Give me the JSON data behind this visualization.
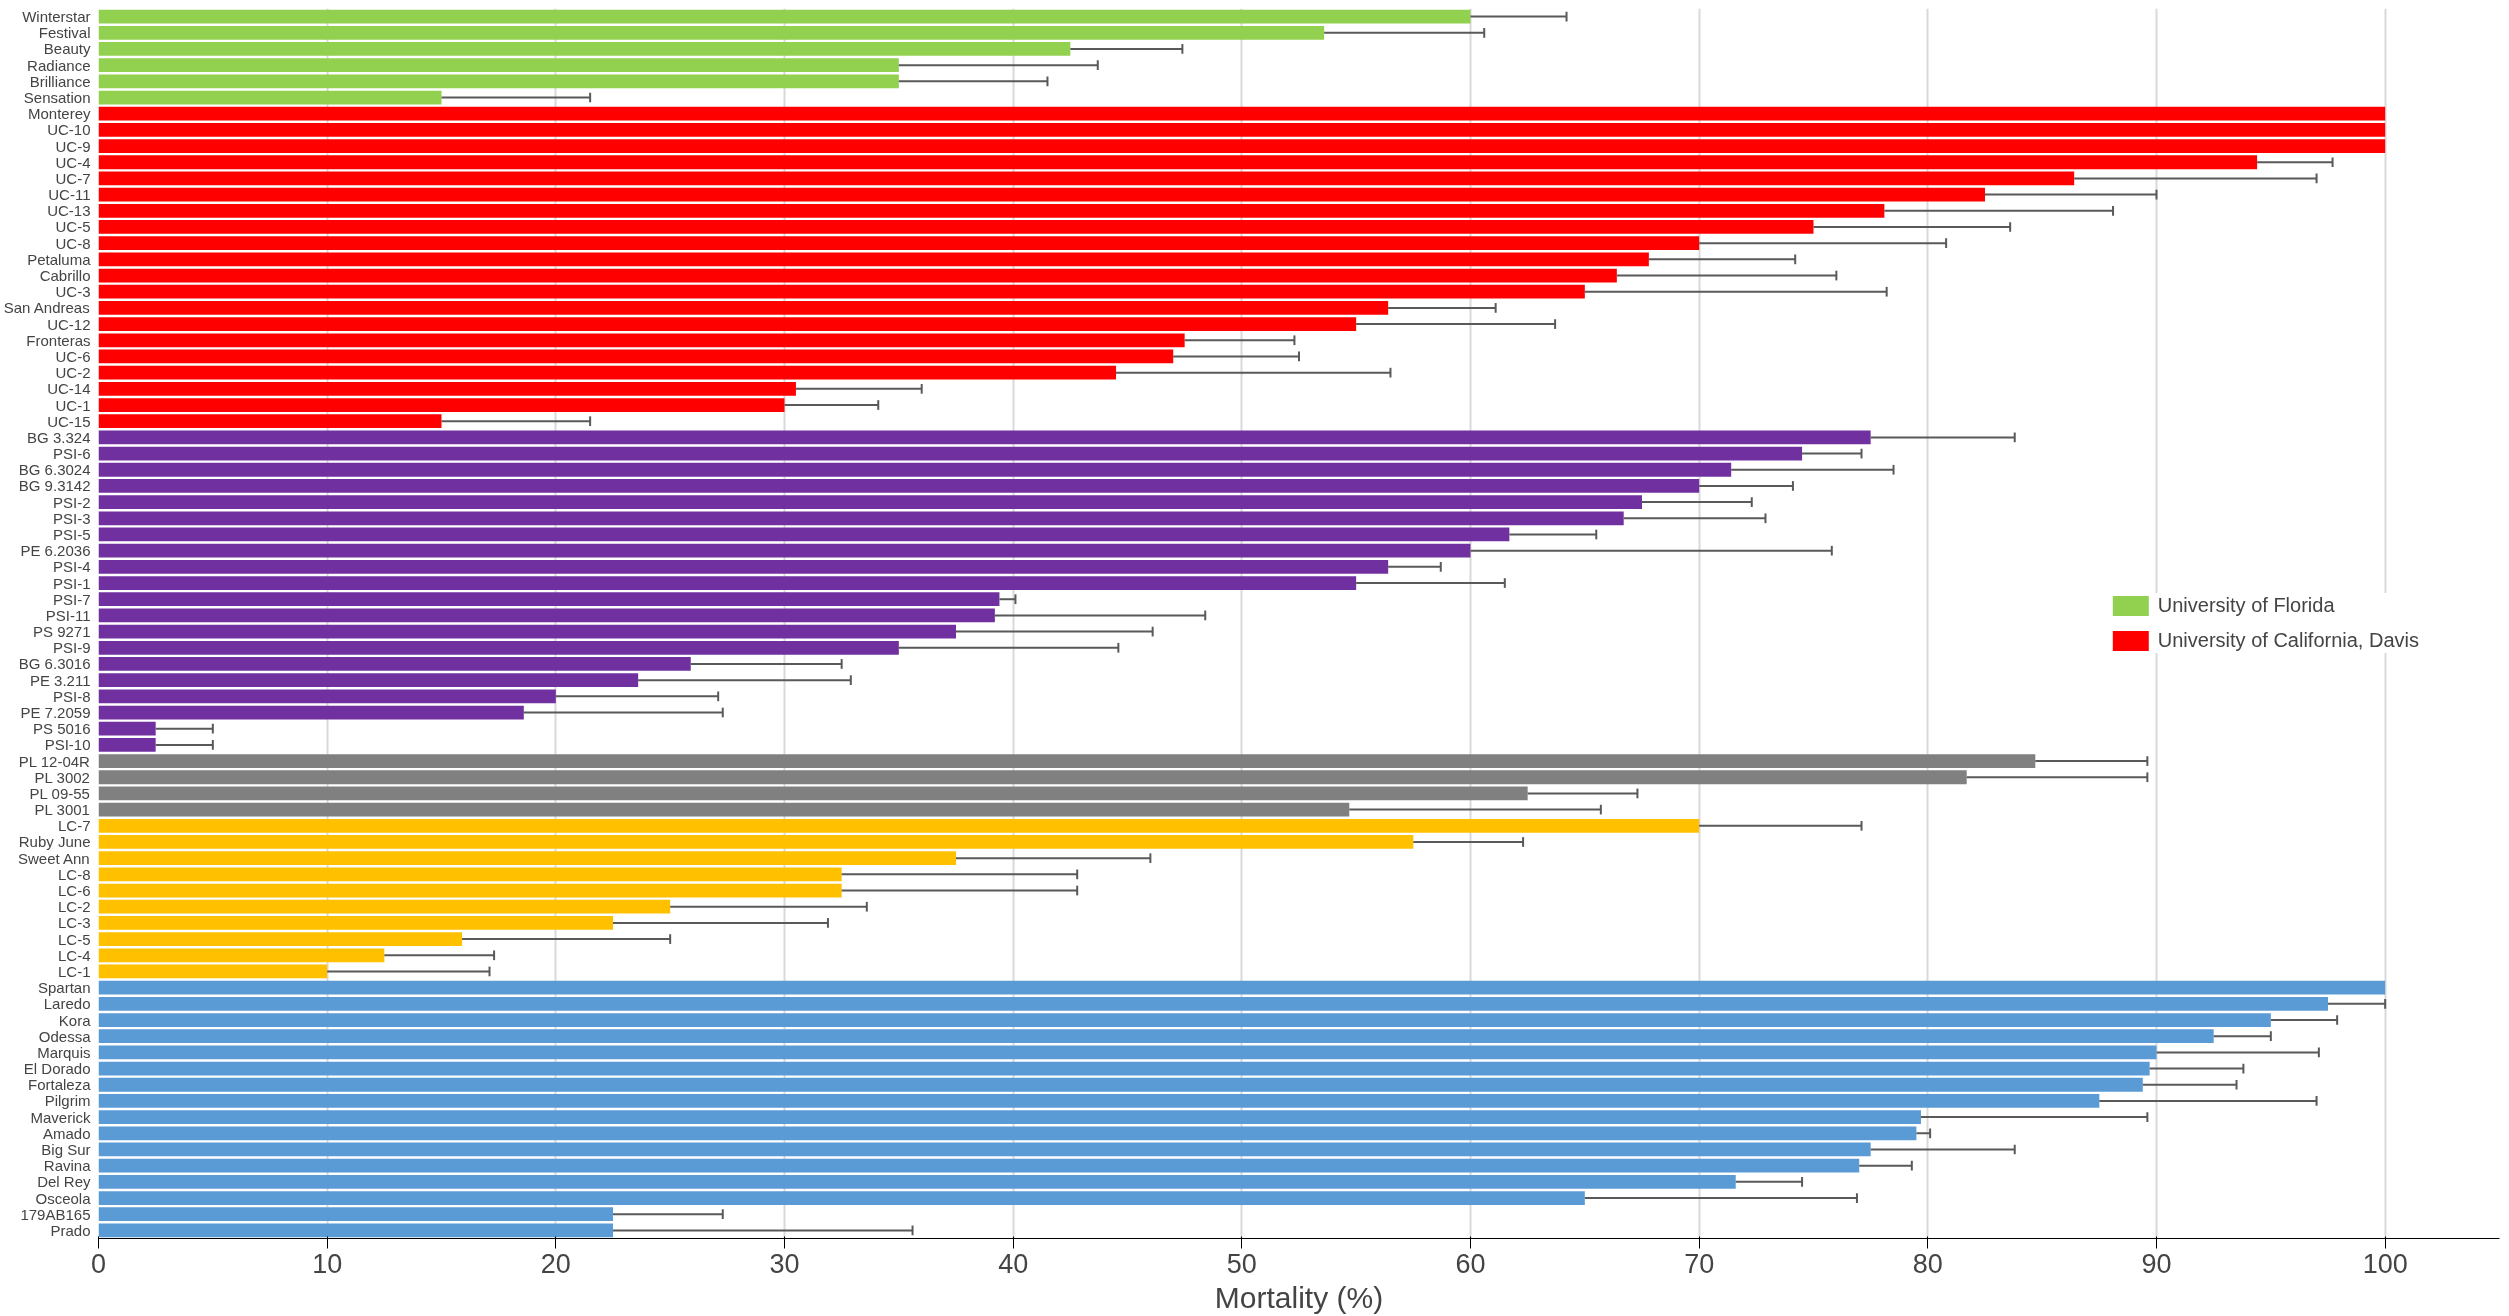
{
  "chart_data": {
    "type": "bar",
    "orientation": "horizontal",
    "xlabel": "Mortality (%)",
    "categories": [
      "Winterstar",
      "Festival",
      "Beauty",
      "Radiance",
      "Brilliance",
      "Sensation",
      "Monterey",
      "UC-10",
      "UC-9",
      "UC-4",
      "UC-7",
      "UC-11",
      "UC-13",
      "UC-5",
      "UC-8",
      "Petaluma",
      "Cabrillo",
      "UC-3",
      "San Andreas",
      "UC-12",
      "Fronteras",
      "UC-6",
      "UC-2",
      "UC-14",
      "UC-1",
      "UC-15",
      "BG 3.324",
      "PSI-6",
      "BG 6.3024",
      "BG 9.3142",
      "PSI-2",
      "PSI-3",
      "PSI-5",
      "PE 6.2036",
      "PSI-4",
      "PSI-1",
      "PSI-7",
      "PSI-11",
      "PS 9271",
      "PSI-9",
      "BG 6.3016",
      "PE 3.211",
      "PSI-8",
      "PE 7.2059",
      "PS 5016",
      "PSI-10",
      "PL 12-04R",
      "PL 3002",
      "PL 09-55",
      "PL 3001",
      "LC-7",
      "Ruby June",
      "Sweet Ann",
      "LC-8",
      "LC-6",
      "LC-2",
      "LC-3",
      "LC-5",
      "LC-4",
      "LC-1",
      "Spartan",
      "Laredo",
      "Kora",
      "Odessa",
      "Marquis",
      "El Dorado",
      "Fortaleza",
      "Pilgrim",
      "Maverick",
      "Amado",
      "Big Sur",
      "Ravina",
      "Del Rey",
      "Osceola",
      "179AB165",
      "Prado"
    ],
    "series": [
      {
        "name": "University of Florida",
        "color": "#92d050",
        "values": [
          60,
          53.6,
          42.5,
          35,
          35,
          15,
          null,
          null,
          null,
          null,
          null,
          null,
          null,
          null,
          null,
          null,
          null,
          null,
          null,
          null,
          null,
          null,
          null,
          null,
          null,
          null,
          null,
          null,
          null,
          null,
          null,
          null,
          null,
          null,
          null,
          null,
          null,
          null,
          null,
          null,
          null,
          null,
          null,
          null,
          null,
          null,
          null,
          null,
          null,
          null,
          null,
          null,
          null,
          null,
          null,
          null,
          null,
          null,
          null,
          null,
          null,
          null,
          null,
          null,
          null,
          null,
          null,
          null,
          null,
          null,
          null,
          null,
          null,
          null,
          null,
          null
        ],
        "errors": [
          [
            60,
            64.2
          ],
          [
            53.6,
            60.6
          ],
          [
            42.5,
            47.4
          ],
          [
            35,
            43.7
          ],
          [
            35,
            41.5
          ],
          [
            15,
            21.5
          ],
          null,
          null,
          null,
          null,
          null,
          null,
          null,
          null,
          null,
          null,
          null,
          null,
          null,
          null,
          null,
          null,
          null,
          null,
          null,
          null,
          null,
          null,
          null,
          null,
          null,
          null,
          null,
          null,
          null,
          null,
          null,
          null,
          null,
          null,
          null,
          null,
          null,
          null,
          null,
          null,
          null,
          null,
          null,
          null,
          null,
          null,
          null,
          null,
          null,
          null,
          null,
          null,
          null,
          null,
          null,
          null,
          null,
          null,
          null,
          null,
          null,
          null,
          null,
          null,
          null,
          null,
          null,
          null,
          null,
          null
        ]
      },
      {
        "name": "University of California, Davis",
        "color": "#ff0000",
        "values": [
          null,
          null,
          null,
          null,
          null,
          null,
          100,
          100,
          100,
          94.4,
          86.4,
          82.5,
          78.1,
          75,
          70,
          67.8,
          66.4,
          65,
          56.4,
          55,
          47.5,
          47,
          44.5,
          30.5,
          30,
          15,
          null,
          null,
          null,
          null,
          null,
          null,
          null,
          null,
          null,
          null,
          null,
          null,
          null,
          null,
          null,
          null,
          null,
          null,
          null,
          null,
          null,
          null,
          null,
          null,
          null,
          null,
          null,
          null,
          null,
          null,
          null,
          null,
          null,
          null,
          null,
          null,
          null,
          null,
          null,
          null,
          null,
          null,
          null,
          null,
          null,
          null,
          null,
          null,
          null,
          null
        ],
        "errors": [
          null,
          null,
          null,
          null,
          null,
          null,
          null,
          null,
          null,
          [
            94.4,
            97.7
          ],
          [
            86.4,
            97
          ],
          [
            82.5,
            90
          ],
          [
            78.1,
            88.1
          ],
          [
            75,
            83.6
          ],
          [
            70,
            80.8
          ],
          [
            67.8,
            74.2
          ],
          [
            66.4,
            76
          ],
          [
            65,
            78.2
          ],
          [
            56.4,
            61.1
          ],
          [
            55,
            63.7
          ],
          [
            47.5,
            52.3
          ],
          [
            47,
            52.5
          ],
          [
            44.5,
            56.5
          ],
          [
            30.5,
            36
          ],
          [
            30,
            34.1
          ],
          [
            15,
            21.5
          ],
          null,
          null,
          null,
          null,
          null,
          null,
          null,
          null,
          null,
          null,
          null,
          null,
          null,
          null,
          null,
          null,
          null,
          null,
          null,
          null,
          null,
          null,
          null,
          null,
          null,
          null,
          null,
          null,
          null,
          null,
          null,
          null,
          null,
          null,
          null,
          null,
          null,
          null,
          null,
          null,
          null,
          null,
          null,
          null,
          null,
          null,
          null,
          null,
          null,
          null
        ]
      },
      {
        "color": "#7030a0",
        "values": [
          null,
          null,
          null,
          null,
          null,
          null,
          null,
          null,
          null,
          null,
          null,
          null,
          null,
          null,
          null,
          null,
          null,
          null,
          null,
          null,
          null,
          null,
          null,
          null,
          null,
          null,
          77.5,
          74.5,
          71.4,
          70,
          67.5,
          66.7,
          61.7,
          60,
          56.4,
          55,
          39.4,
          39.2,
          37.5,
          35,
          25.9,
          23.6,
          20,
          18.6,
          2.5,
          2.5,
          null,
          null,
          null,
          null,
          null,
          null,
          null,
          null,
          null,
          null,
          null,
          null,
          null,
          null,
          null,
          null,
          null,
          null,
          null,
          null,
          null,
          null,
          null,
          null,
          null,
          null,
          null,
          null,
          null,
          null
        ],
        "errors": [
          null,
          null,
          null,
          null,
          null,
          null,
          null,
          null,
          null,
          null,
          null,
          null,
          null,
          null,
          null,
          null,
          null,
          null,
          null,
          null,
          null,
          null,
          null,
          null,
          null,
          null,
          [
            77.5,
            83.8
          ],
          [
            74.5,
            77.1
          ],
          [
            71.4,
            78.5
          ],
          [
            70,
            74.1
          ],
          [
            67.5,
            72.3
          ],
          [
            66.7,
            72.9
          ],
          [
            61.7,
            65.5
          ],
          [
            60,
            75.8
          ],
          [
            56.4,
            58.7
          ],
          [
            55,
            61.5
          ],
          [
            39.4,
            40.1
          ],
          [
            39.2,
            48.4
          ],
          [
            37.5,
            46.1
          ],
          [
            35,
            44.6
          ],
          [
            25.9,
            32.5
          ],
          [
            23.6,
            32.9
          ],
          [
            20,
            27.1
          ],
          [
            18.6,
            27.3
          ],
          [
            2.5,
            5
          ],
          [
            2.5,
            5
          ],
          null,
          null,
          null,
          null,
          null,
          null,
          null,
          null,
          null,
          null,
          null,
          null,
          null,
          null,
          null,
          null,
          null,
          null,
          null,
          null,
          null,
          null,
          null,
          null,
          null,
          null,
          null,
          null,
          null,
          null
        ]
      },
      {
        "color": "#808080",
        "values": [
          null,
          null,
          null,
          null,
          null,
          null,
          null,
          null,
          null,
          null,
          null,
          null,
          null,
          null,
          null,
          null,
          null,
          null,
          null,
          null,
          null,
          null,
          null,
          null,
          null,
          null,
          null,
          null,
          null,
          null,
          null,
          null,
          null,
          null,
          null,
          null,
          null,
          null,
          null,
          null,
          null,
          null,
          null,
          null,
          null,
          null,
          84.7,
          81.7,
          62.5,
          54.7,
          null,
          null,
          null,
          null,
          null,
          null,
          null,
          null,
          null,
          null,
          null,
          null,
          null,
          null,
          null,
          null,
          null,
          null,
          null,
          null,
          null,
          null,
          null,
          null,
          null,
          null
        ],
        "errors": [
          null,
          null,
          null,
          null,
          null,
          null,
          null,
          null,
          null,
          null,
          null,
          null,
          null,
          null,
          null,
          null,
          null,
          null,
          null,
          null,
          null,
          null,
          null,
          null,
          null,
          null,
          null,
          null,
          null,
          null,
          null,
          null,
          null,
          null,
          null,
          null,
          null,
          null,
          null,
          null,
          null,
          null,
          null,
          null,
          null,
          null,
          [
            84.7,
            89.6
          ],
          [
            81.7,
            89.6
          ],
          [
            62.5,
            67.3
          ],
          [
            54.7,
            65.7
          ],
          null,
          null,
          null,
          null,
          null,
          null,
          null,
          null,
          null,
          null,
          null,
          null,
          null,
          null,
          null,
          null,
          null,
          null,
          null,
          null,
          null,
          null,
          null,
          null,
          null,
          null
        ]
      },
      {
        "color": "#ffc000",
        "values": [
          null,
          null,
          null,
          null,
          null,
          null,
          null,
          null,
          null,
          null,
          null,
          null,
          null,
          null,
          null,
          null,
          null,
          null,
          null,
          null,
          null,
          null,
          null,
          null,
          null,
          null,
          null,
          null,
          null,
          null,
          null,
          null,
          null,
          null,
          null,
          null,
          null,
          null,
          null,
          null,
          null,
          null,
          null,
          null,
          null,
          null,
          null,
          null,
          null,
          null,
          70,
          57.5,
          37.5,
          32.5,
          32.5,
          25,
          22.5,
          15.9,
          12.5,
          10,
          null,
          null,
          null,
          null,
          null,
          null,
          null,
          null,
          null,
          null,
          null,
          null,
          null,
          null,
          null,
          null
        ],
        "errors": [
          null,
          null,
          null,
          null,
          null,
          null,
          null,
          null,
          null,
          null,
          null,
          null,
          null,
          null,
          null,
          null,
          null,
          null,
          null,
          null,
          null,
          null,
          null,
          null,
          null,
          null,
          null,
          null,
          null,
          null,
          null,
          null,
          null,
          null,
          null,
          null,
          null,
          null,
          null,
          null,
          null,
          null,
          null,
          null,
          null,
          null,
          null,
          null,
          null,
          null,
          [
            70,
            77.1
          ],
          [
            57.5,
            62.3
          ],
          [
            37.5,
            46
          ],
          [
            32.5,
            42.8
          ],
          [
            32.5,
            42.8
          ],
          [
            25,
            33.6
          ],
          [
            22.5,
            31.9
          ],
          [
            15.9,
            25
          ],
          [
            12.5,
            17.3
          ],
          [
            10,
            17.1
          ],
          null,
          null,
          null,
          null,
          null,
          null,
          null,
          null,
          null,
          null,
          null,
          null,
          null,
          null,
          null,
          null
        ]
      },
      {
        "color": "#5b9bd5",
        "values": [
          null,
          null,
          null,
          null,
          null,
          null,
          null,
          null,
          null,
          null,
          null,
          null,
          null,
          null,
          null,
          null,
          null,
          null,
          null,
          null,
          null,
          null,
          null,
          null,
          null,
          null,
          null,
          null,
          null,
          null,
          null,
          null,
          null,
          null,
          null,
          null,
          null,
          null,
          null,
          null,
          null,
          null,
          null,
          null,
          null,
          null,
          null,
          null,
          null,
          null,
          null,
          null,
          null,
          null,
          null,
          null,
          null,
          null,
          null,
          null,
          100,
          97.5,
          95,
          92.5,
          90,
          89.7,
          89.4,
          87.5,
          79.7,
          79.5,
          77.5,
          77,
          71.6,
          65,
          22.5,
          22.5
        ],
        "errors": [
          null,
          null,
          null,
          null,
          null,
          null,
          null,
          null,
          null,
          null,
          null,
          null,
          null,
          null,
          null,
          null,
          null,
          null,
          null,
          null,
          null,
          null,
          null,
          null,
          null,
          null,
          null,
          null,
          null,
          null,
          null,
          null,
          null,
          null,
          null,
          null,
          null,
          null,
          null,
          null,
          null,
          null,
          null,
          null,
          null,
          null,
          null,
          null,
          null,
          null,
          null,
          null,
          null,
          null,
          null,
          null,
          null,
          null,
          null,
          null,
          null,
          [
            97.5,
            100
          ],
          [
            95,
            97.9
          ],
          [
            92.5,
            95
          ],
          [
            90,
            97.1
          ],
          [
            89.7,
            93.8
          ],
          [
            89.4,
            93.5
          ],
          [
            87.5,
            97
          ],
          [
            79.7,
            89.6
          ],
          [
            79.5,
            80.1
          ],
          [
            77.5,
            83.8
          ],
          [
            77,
            79.3
          ],
          [
            71.6,
            74.5
          ],
          [
            65,
            76.9
          ],
          [
            22.5,
            27.3
          ],
          [
            22.5,
            35.6
          ]
        ]
      }
    ],
    "xlim": [
      0,
      105
    ],
    "xticks": [
      0,
      10,
      20,
      30,
      40,
      50,
      60,
      70,
      80,
      90,
      100
    ],
    "grid": "x",
    "legend": "right"
  }
}
